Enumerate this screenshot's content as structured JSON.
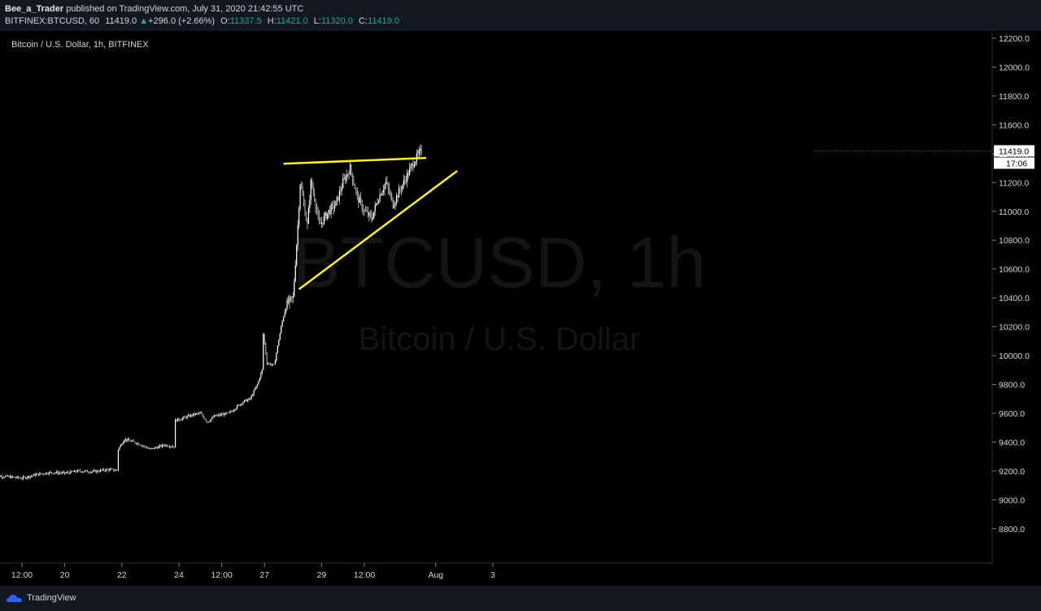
{
  "header": {
    "author": "Bee_a_Trader",
    "published_text": "published on TradingView.com, July 31, 2020 21:42:55 UTC",
    "symbol": "BITFINEX:BTCUSD, 60",
    "last": "11419.0",
    "change": "+296.0 (+2.66%)",
    "open_label": "O:",
    "open": "11337.5",
    "high_label": "H:",
    "high": "11421.0",
    "low_label": "L:",
    "low": "11320.0",
    "close_label": "C:",
    "close": "11419.0"
  },
  "footer": {
    "brand": "TradingView"
  },
  "chart_data": {
    "type": "candlestick",
    "title": "Bitcoin / U.S. Dollar, 1h, BITFINEX",
    "watermark_symbol": "BTCUSD, 1h",
    "watermark_name": "Bitcoin / U.S. Dollar",
    "interval": "1h",
    "ylim": [
      8700,
      12270
    ],
    "y_ticks": [
      "12200.0",
      "12000.0",
      "11800.0",
      "11600.0",
      "11400.0",
      "11200.0",
      "11000.0",
      "10800.0",
      "10600.0",
      "10400.0",
      "10200.0",
      "10000.0",
      "9800.0",
      "9600.0",
      "9400.0",
      "9200.0",
      "9000.0",
      "8800.0"
    ],
    "x_ticks": [
      "12:00",
      "20",
      "22",
      "24",
      "12:00",
      "27",
      "29",
      "12:00",
      "Aug",
      "3"
    ],
    "x_tick_times_hours": [
      12,
      48,
      96,
      144,
      180,
      216,
      264,
      300,
      360,
      408
    ],
    "x_time_origin": "July 19, 00:00",
    "price_label": "11419.0",
    "countdown_label": "17:06",
    "close_path": [
      [
        -12,
        9170
      ],
      [
        0,
        9160
      ],
      [
        12,
        9150
      ],
      [
        24,
        9175
      ],
      [
        36,
        9190
      ],
      [
        48,
        9185
      ],
      [
        60,
        9200
      ],
      [
        72,
        9195
      ],
      [
        84,
        9210
      ],
      [
        92,
        9205
      ],
      [
        93,
        9350
      ],
      [
        98,
        9420
      ],
      [
        110,
        9390
      ],
      [
        120,
        9350
      ],
      [
        132,
        9380
      ],
      [
        140,
        9370
      ],
      [
        141,
        9550
      ],
      [
        145,
        9560
      ],
      [
        156,
        9590
      ],
      [
        162,
        9600
      ],
      [
        168,
        9540
      ],
      [
        174,
        9580
      ],
      [
        186,
        9600
      ],
      [
        198,
        9680
      ],
      [
        204,
        9700
      ],
      [
        210,
        9800
      ],
      [
        214,
        9900
      ],
      [
        215,
        10150
      ],
      [
        218,
        9950
      ],
      [
        224,
        9930
      ],
      [
        230,
        10200
      ],
      [
        234,
        10350
      ],
      [
        240,
        10400
      ],
      [
        244,
        10900
      ],
      [
        246,
        11200
      ],
      [
        252,
        10900
      ],
      [
        255,
        11200
      ],
      [
        258,
        11100
      ],
      [
        262,
        10900
      ],
      [
        270,
        11000
      ],
      [
        276,
        11050
      ],
      [
        282,
        11200
      ],
      [
        288,
        11300
      ],
      [
        294,
        11100
      ],
      [
        300,
        11000
      ],
      [
        306,
        10950
      ],
      [
        312,
        11100
      ],
      [
        318,
        11200
      ],
      [
        324,
        11050
      ],
      [
        330,
        11150
      ],
      [
        336,
        11250
      ],
      [
        342,
        11350
      ],
      [
        348,
        11419
      ]
    ],
    "trendlines": [
      {
        "type": "resistance",
        "color": "#ffeb3b",
        "points": [
          [
            232,
            11330
          ],
          [
            352,
            11370
          ]
        ]
      },
      {
        "type": "support",
        "color": "#ffeb3b",
        "points": [
          [
            245,
            10460
          ],
          [
            378,
            11280
          ]
        ]
      }
    ]
  }
}
